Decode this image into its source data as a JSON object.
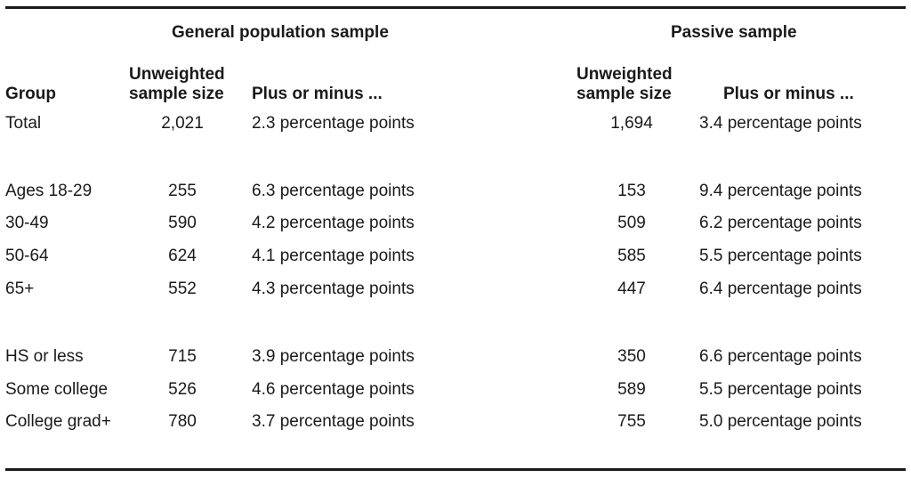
{
  "sections": {
    "general": "General population sample",
    "passive": "Passive sample"
  },
  "headers": {
    "group": "Group",
    "n_line1": "Unweighted",
    "n_line2": "sample size",
    "moe": "Plus or minus ..."
  },
  "rows": [
    {
      "label": "Total",
      "n1": "2,021",
      "m1": "2.3 percentage points",
      "n2": "1,694",
      "m2": "3.4 percentage points"
    },
    {
      "label": "Ages 18-29",
      "n1": "255",
      "m1": "6.3 percentage points",
      "n2": "153",
      "m2": "9.4 percentage points"
    },
    {
      "label": "30-49",
      "n1": "590",
      "m1": "4.2 percentage points",
      "n2": "509",
      "m2": "6.2 percentage points"
    },
    {
      "label": "50-64",
      "n1": "624",
      "m1": "4.1 percentage points",
      "n2": "585",
      "m2": "5.5 percentage points"
    },
    {
      "label": "65+",
      "n1": "552",
      "m1": "4.3 percentage points",
      "n2": "447",
      "m2": "6.4 percentage points"
    },
    {
      "label": "HS or less",
      "n1": "715",
      "m1": "3.9 percentage points",
      "n2": "350",
      "m2": "6.6 percentage points"
    },
    {
      "label": "Some college",
      "n1": "526",
      "m1": "4.6 percentage points",
      "n2": "589",
      "m2": "5.5 percentage points"
    },
    {
      "label": "College grad+",
      "n1": "780",
      "m1": "3.7 percentage points",
      "n2": "755",
      "m2": "5.0 percentage points"
    }
  ]
}
